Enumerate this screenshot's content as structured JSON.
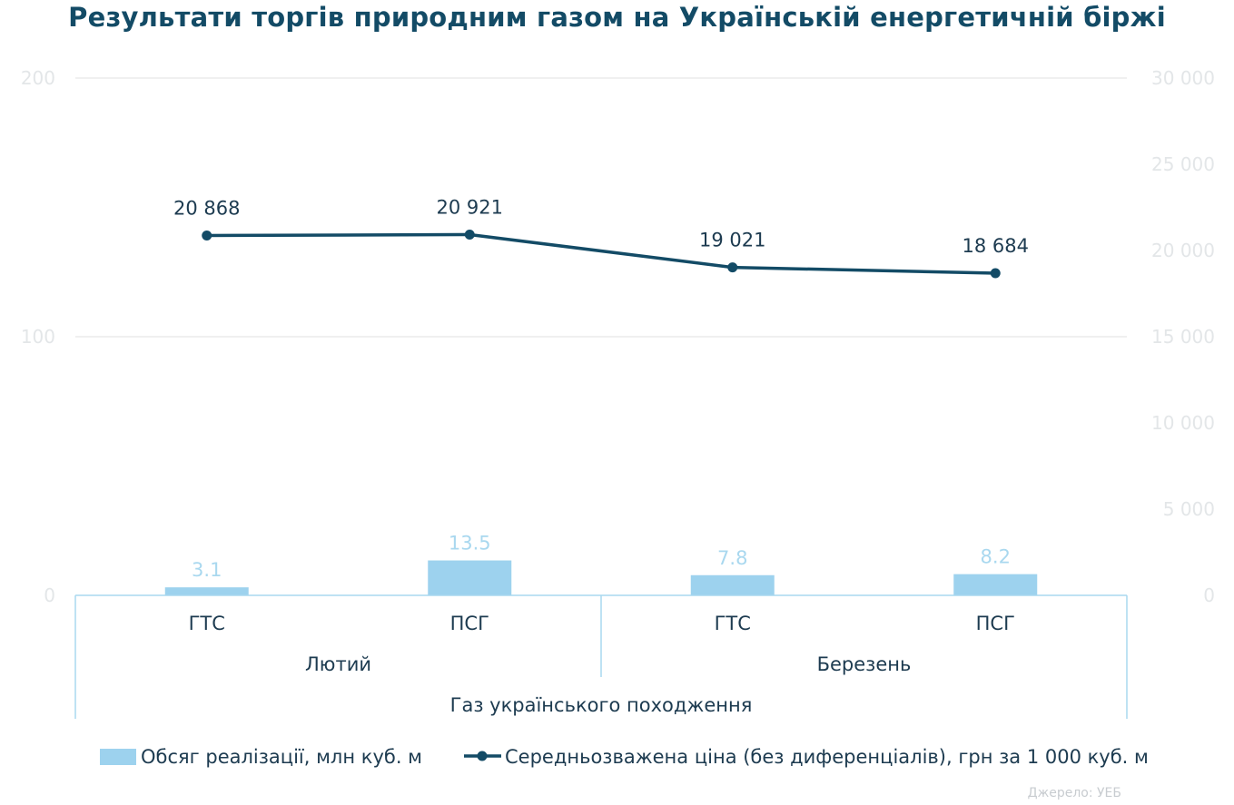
{
  "title": "Результати торгів природним газом на Українській енергетичній біржі",
  "source": "Джерело: УЕБ",
  "colors": {
    "bar": "#9dd2ee",
    "line": "#134b66",
    "title": "#134b66",
    "grid": "#ececec",
    "axis_ticks": "#e3e6e8",
    "axis_line": "#a9d8ef"
  },
  "chart_data": {
    "type": "bar",
    "title": "Результати торгів природним газом на Українській енергетичній біржі",
    "categories": [
      "ГТС",
      "ПСГ",
      "ГТС",
      "ПСГ"
    ],
    "category_groups": [
      {
        "label": "Лютий",
        "span": [
          0,
          1
        ]
      },
      {
        "label": "Березень",
        "span": [
          2,
          3
        ]
      }
    ],
    "outer_group": "Газ українського походження",
    "series": [
      {
        "name": "Обсяг реалізації, млн куб. м",
        "type": "bar",
        "axis": "left",
        "values": [
          3.1,
          13.5,
          7.8,
          8.2
        ],
        "labels": [
          "3.1",
          "13.5",
          "7.8",
          "8.2"
        ]
      },
      {
        "name": "Середньозважена ціна (без диференціалів), грн за 1 000 куб. м",
        "type": "line",
        "axis": "right",
        "values": [
          20868,
          20921,
          19021,
          18684
        ],
        "labels": [
          "20 868",
          "20 921",
          "19 021",
          "18 684"
        ]
      }
    ],
    "ylim_left": [
      0,
      200
    ],
    "yticks_left": [
      "0",
      "100",
      "200"
    ],
    "ylim_right": [
      0,
      30000
    ],
    "yticks_right": [
      "0",
      "5 000",
      "10 000",
      "15 000",
      "20 000",
      "25 000",
      "30 000"
    ],
    "grid": true,
    "legend": "bottom"
  }
}
